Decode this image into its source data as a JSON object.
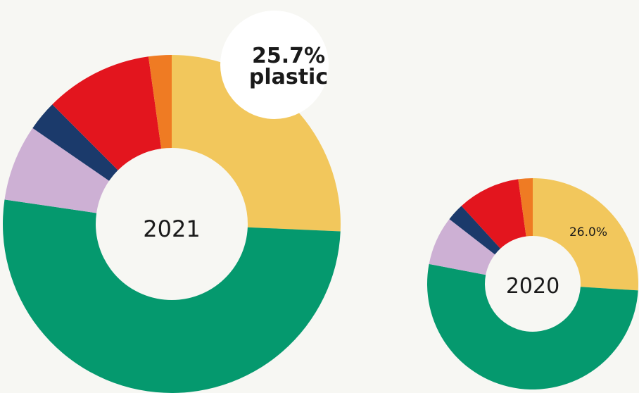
{
  "chart_data": [
    {
      "type": "donut",
      "center_label": "2021",
      "slices": [
        {
          "value": 25.7,
          "color": "#f2c75c"
        },
        {
          "value": 51.6,
          "color": "#05996e"
        },
        {
          "value": 7.3,
          "color": "#cdb0d4"
        },
        {
          "value": 2.9,
          "color": "#1b3a6b"
        },
        {
          "value": 10.3,
          "color": "#e3151e"
        },
        {
          "value": 2.2,
          "color": "#ef7b23"
        }
      ],
      "callout": {
        "value_text": "25.7%",
        "label_text": "plastic"
      }
    },
    {
      "type": "donut",
      "center_label": "2020",
      "slices": [
        {
          "value": 26.0,
          "color": "#f2c75c"
        },
        {
          "value": 52.0,
          "color": "#05996e"
        },
        {
          "value": 7.5,
          "color": "#cdb0d4"
        },
        {
          "value": 2.7,
          "color": "#1b3a6b"
        },
        {
          "value": 9.6,
          "color": "#e3151e"
        },
        {
          "value": 2.2,
          "color": "#ef7b23"
        }
      ],
      "data_label": "26.0%"
    }
  ]
}
